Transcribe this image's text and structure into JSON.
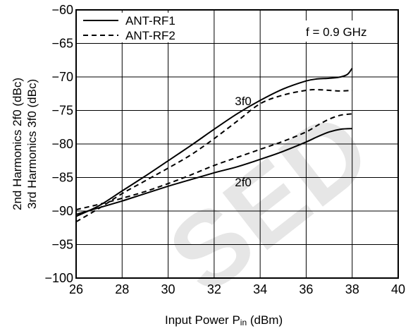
{
  "chart_data": {
    "type": "line",
    "title": "",
    "xlabel": "Input Power  P",
    "xlabel_sub": "in",
    "xlabel_unit": " (dBm)",
    "ylabel_line1": "2nd Harmonics  2f0 (dBc)",
    "ylabel_line2": "3rd Harmonics  3f0 (dBc)",
    "xlim": [
      26,
      40
    ],
    "ylim": [
      -100,
      -60
    ],
    "xticks": [
      26,
      28,
      30,
      32,
      34,
      36,
      38,
      40
    ],
    "yticks": [
      -60,
      -65,
      -70,
      -75,
      -80,
      -85,
      -90,
      -95,
      -100
    ],
    "grid": true,
    "legend_position": "top-left",
    "condition_label": "f = 0.9 GHz",
    "legend": [
      {
        "label": "ANT-RF1",
        "style": "solid"
      },
      {
        "label": "ANT-RF2",
        "style": "dashed"
      }
    ],
    "annotations": [
      {
        "text": "3f0",
        "x": 32.9,
        "y": -74.2
      },
      {
        "text": "2f0",
        "x": 32.9,
        "y": -86.3
      }
    ],
    "series": [
      {
        "legend_ref": 0,
        "group": "3f0",
        "style": "solid",
        "color": "#000000",
        "x": [
          26,
          27,
          28,
          29,
          30,
          31,
          32,
          33,
          34,
          35,
          36,
          36.5,
          37,
          37.5,
          37.8,
          38
        ],
        "y": [
          -90.8,
          -89.2,
          -87.0,
          -84.8,
          -82.5,
          -80.2,
          -77.8,
          -75.5,
          -73.5,
          -71.8,
          -70.6,
          -70.3,
          -70.2,
          -70.0,
          -69.6,
          -68.7
        ]
      },
      {
        "legend_ref": 1,
        "group": "3f0",
        "style": "dashed",
        "color": "#000000",
        "x": [
          26,
          27,
          28,
          29,
          30,
          31,
          32,
          33,
          34,
          35,
          36,
          36.5,
          37,
          37.5,
          38
        ],
        "y": [
          -91.6,
          -89.6,
          -87.4,
          -85.5,
          -83.6,
          -81.6,
          -79.2,
          -76.6,
          -74.0,
          -72.7,
          -72.0,
          -71.9,
          -72.0,
          -72.1,
          -72.0
        ]
      },
      {
        "legend_ref": 0,
        "group": "2f0",
        "style": "solid",
        "color": "#000000",
        "x": [
          26,
          27,
          28,
          29,
          30,
          31,
          32,
          33,
          34,
          35,
          36,
          36.5,
          37,
          37.5,
          38
        ],
        "y": [
          -90.5,
          -89.5,
          -88.5,
          -87.4,
          -86.3,
          -85.3,
          -84.3,
          -83.4,
          -82.3,
          -81.1,
          -79.7,
          -78.9,
          -78.2,
          -77.8,
          -77.7
        ]
      },
      {
        "legend_ref": 1,
        "group": "2f0",
        "style": "dashed",
        "color": "#000000",
        "x": [
          26,
          27,
          28,
          29,
          30,
          31,
          32,
          33,
          34,
          35,
          36,
          36.5,
          37,
          37.5,
          38
        ],
        "y": [
          -89.8,
          -89.0,
          -88.1,
          -87.1,
          -85.9,
          -84.6,
          -83.2,
          -82.0,
          -80.8,
          -79.6,
          -78.2,
          -77.2,
          -76.3,
          -75.7,
          -75.5
        ]
      }
    ]
  },
  "watermark": {
    "color": "#e6e6e6"
  }
}
